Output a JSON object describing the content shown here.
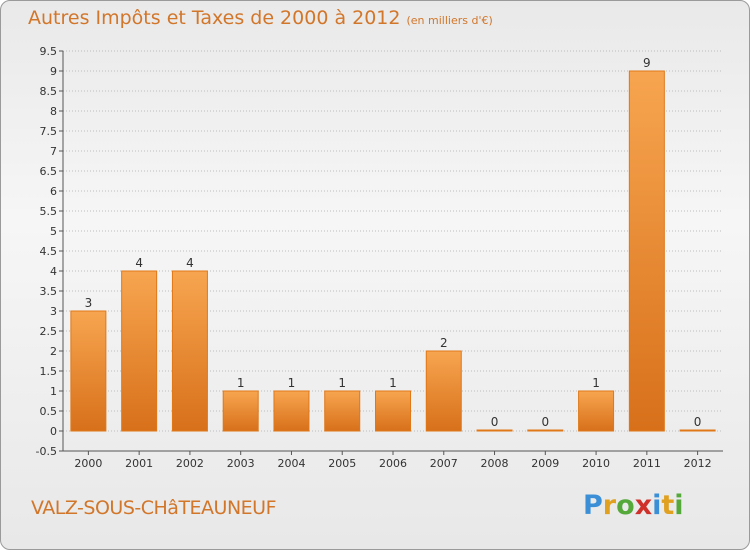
{
  "title": "Autres Impôts et Taxes de 2000 à 2012",
  "subtitle": "(en milliers d'€)",
  "commune": "VALZ-SOUS-CHâTEAUNEUF",
  "brand": {
    "letters": [
      "P",
      "r",
      "o",
      "x",
      "i",
      "t",
      "i"
    ],
    "colors": [
      "#3a8fd6",
      "#e0a020",
      "#55a83a",
      "#d0302a",
      "#3a8fd6",
      "#e0a020",
      "#55a83a"
    ]
  },
  "colors": {
    "bar_fill": "#f08a2a",
    "bar_stroke": "#e07818",
    "title": "#d2762a"
  },
  "chart_data": {
    "type": "bar",
    "categories": [
      "2000",
      "2001",
      "2002",
      "2003",
      "2004",
      "2005",
      "2006",
      "2007",
      "2008",
      "2009",
      "2010",
      "2011",
      "2012"
    ],
    "values": [
      3,
      4,
      4,
      1,
      1,
      1,
      1,
      2,
      0,
      0,
      1,
      9,
      0
    ],
    "data_labels": [
      "3",
      "4",
      "4",
      "1",
      "1",
      "1",
      "1",
      "2",
      "0",
      "0",
      "1",
      "9",
      "0"
    ],
    "ylim": [
      -0.5,
      9.5
    ],
    "yticks": [
      "-0.5",
      "0",
      "0.5",
      "1",
      "1.5",
      "2",
      "2.5",
      "3",
      "3.5",
      "4",
      "4.5",
      "5",
      "5.5",
      "6",
      "6.5",
      "7",
      "7.5",
      "8",
      "8.5",
      "9",
      "9.5"
    ],
    "grid": "horizontal dotted",
    "legend": "none"
  }
}
